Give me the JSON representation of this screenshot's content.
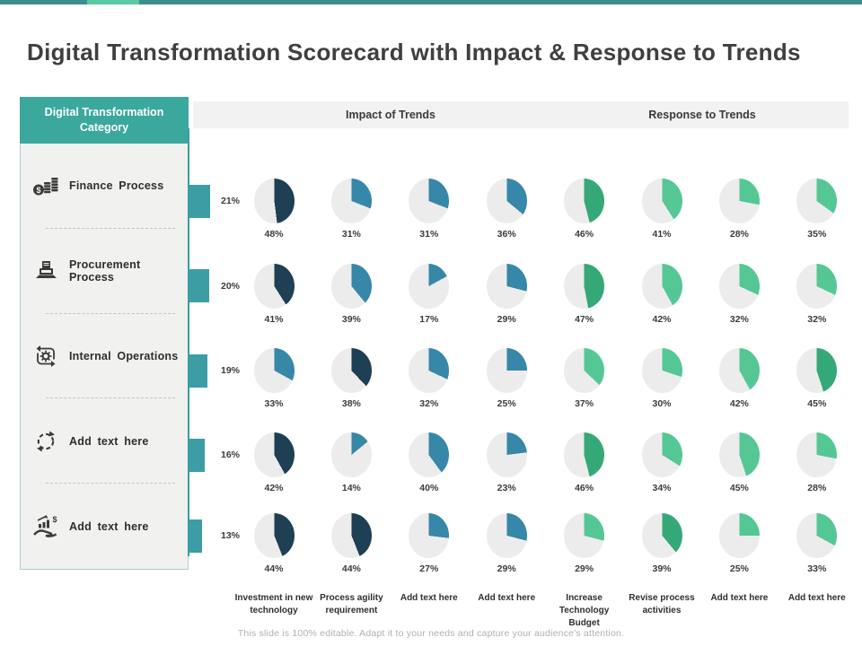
{
  "title": "Digital Transformation Scorecard with Impact &  Response to Trends",
  "sidebar": {
    "header": "Digital  Transformation Category",
    "items": [
      {
        "label": "Finance  Process",
        "icon": "money-coins-icon"
      },
      {
        "label": "Procurement Process",
        "icon": "procurement-device-icon"
      },
      {
        "label": "Internal  Operations",
        "icon": "operations-gear-icon"
      },
      {
        "label": "Add  text here",
        "icon": "refresh-dashed-icon"
      },
      {
        "label": "Add  text here",
        "icon": "hand-growth-icon"
      }
    ]
  },
  "band": {
    "impact_label": "Impact of Trends",
    "response_label": "Response to Trends"
  },
  "palette": {
    "navy": "#1E3F54",
    "blue": "#3787A9",
    "green": "#35A878",
    "mint": "#55C795",
    "track": "#ECECEC",
    "bar_teal": "#3C9DA5",
    "sidebar_teal": "#3AA89D",
    "topbar_dark": "#3E8E91",
    "topbar_mint": "#5BC9A1"
  },
  "chart_data": {
    "type": "pie",
    "description": "Grid of small pie charts; each row is a digital transformation category with a teal bar showing its weight, each column a trend; wedge = percentage, starts at 12 o'clock clockwise",
    "group_headers": [
      "Impact of Trends",
      "Response to Trends"
    ],
    "columns": [
      "Investment in new  technology",
      "Process agility requirement",
      "Add text here",
      "Add text here",
      "Increase Technology Budget",
      "Revise process activities",
      "Add text here",
      "Add text here"
    ],
    "rows": [
      {
        "category": "Finance Process",
        "value": 21,
        "pies": [
          48,
          31,
          31,
          36,
          46,
          41,
          28,
          35
        ],
        "colors": [
          "navy",
          "blue",
          "blue",
          "blue",
          "green",
          "mint",
          "mint",
          "mint"
        ]
      },
      {
        "category": "Procurement Process",
        "value": 20,
        "pies": [
          41,
          39,
          17,
          29,
          47,
          42,
          32,
          32
        ],
        "colors": [
          "navy",
          "blue",
          "blue",
          "blue",
          "green",
          "mint",
          "mint",
          "mint"
        ]
      },
      {
        "category": "Internal Operations",
        "value": 19,
        "pies": [
          33,
          38,
          32,
          25,
          37,
          30,
          42,
          45
        ],
        "colors": [
          "blue",
          "navy",
          "blue",
          "blue",
          "mint",
          "mint",
          "mint",
          "green"
        ]
      },
      {
        "category": "Add text here",
        "value": 16,
        "pies": [
          42,
          14,
          40,
          23,
          46,
          34,
          45,
          28
        ],
        "colors": [
          "navy",
          "blue",
          "blue",
          "blue",
          "green",
          "mint",
          "mint",
          "mint"
        ]
      },
      {
        "category": "Add text here",
        "value": 13,
        "pies": [
          44,
          44,
          27,
          29,
          29,
          39,
          25,
          33
        ],
        "colors": [
          "navy",
          "navy",
          "blue",
          "blue",
          "mint",
          "green",
          "mint",
          "mint"
        ]
      }
    ]
  },
  "footer": "This slide is 100% editable.  Adapt it to your needs and capture your audience's attention."
}
